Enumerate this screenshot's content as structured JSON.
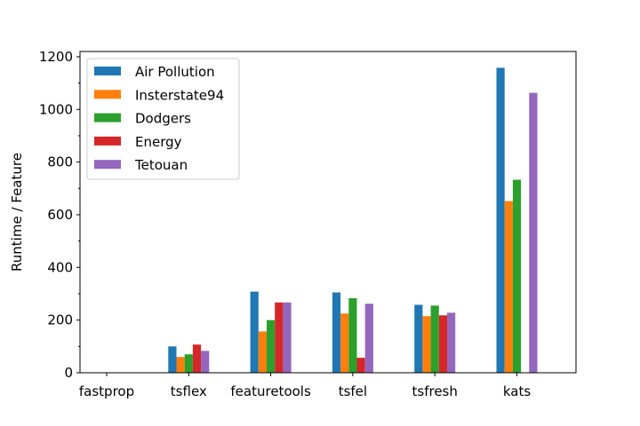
{
  "chart_data": {
    "type": "bar",
    "title": "",
    "xlabel": "",
    "ylabel": "Runtime / Feature",
    "ylim": [
      0,
      1220
    ],
    "yticks": [
      0,
      200,
      400,
      600,
      800,
      1000,
      1200
    ],
    "y_minor_step": 100,
    "grid": false,
    "legend_position": "top-left",
    "categories": [
      "fastprop",
      "tsflex",
      "featuretools",
      "tsfel",
      "tsfresh",
      "kats"
    ],
    "series": [
      {
        "name": "Air Pollution",
        "color": "#1f77b4",
        "values": [
          0.5,
          100,
          308,
          305,
          258,
          1158
        ]
      },
      {
        "name": "Insterstate94",
        "color": "#ff7f0e",
        "values": [
          0.5,
          60,
          157,
          225,
          215,
          652
        ]
      },
      {
        "name": "Dodgers",
        "color": "#2ca02c",
        "values": [
          0.5,
          70,
          200,
          283,
          255,
          733
        ]
      },
      {
        "name": "Energy",
        "color": "#d62728",
        "values": [
          0.5,
          107,
          267,
          57,
          218,
          0
        ]
      },
      {
        "name": "Tetouan",
        "color": "#9467bd",
        "values": [
          0.5,
          83,
          267,
          262,
          228,
          1063
        ]
      }
    ]
  }
}
